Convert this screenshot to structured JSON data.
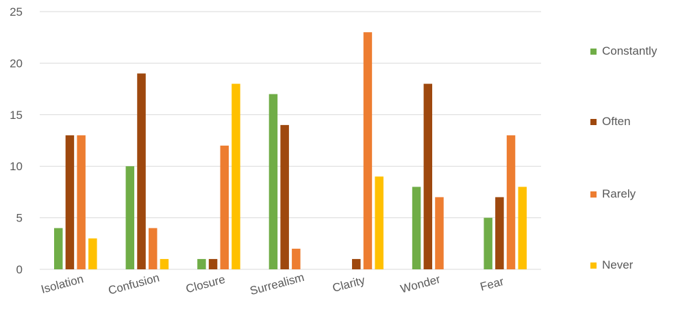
{
  "chart_data": {
    "type": "bar",
    "categories": [
      "Isolation",
      "Confusion",
      "Closure",
      "Surrealism",
      "Clarity",
      "Wonder",
      "Fear"
    ],
    "series": [
      {
        "name": "Constantly",
        "color": "#70AD47",
        "values": [
          4,
          10,
          1,
          17,
          0,
          8,
          5
        ]
      },
      {
        "name": "Often",
        "color": "#9E480E",
        "values": [
          13,
          19,
          1,
          14,
          1,
          18,
          7
        ]
      },
      {
        "name": "Rarely",
        "color": "#ED7D31",
        "values": [
          13,
          4,
          12,
          2,
          23,
          7,
          13
        ]
      },
      {
        "name": "Never",
        "color": "#FFC000",
        "values": [
          3,
          1,
          18,
          0,
          9,
          0,
          8
        ]
      }
    ],
    "ylim": [
      0,
      25
    ],
    "yticks": [
      0,
      5,
      10,
      15,
      20,
      25
    ],
    "grid": true,
    "legend_position": "right"
  }
}
